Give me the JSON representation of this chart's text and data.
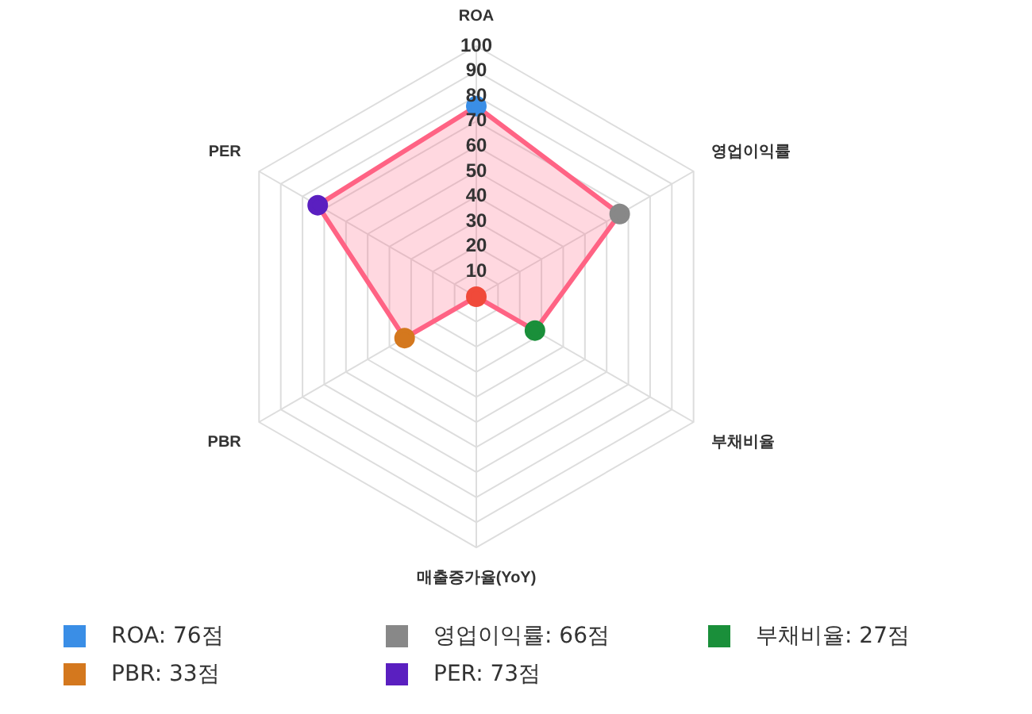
{
  "chart_data": {
    "type": "radar",
    "categories": [
      "ROA",
      "영업이익률",
      "부채비율",
      "매출증가율(YoY)",
      "PBR",
      "PER"
    ],
    "series": [
      {
        "color": "#ff6384",
        "values": [
          76,
          66,
          27,
          0,
          33,
          73
        ],
        "colors": [
          "#3a8ee6",
          "#888888",
          "#1a8f3a",
          "#f04a3a",
          "#d4781e",
          "#5a1fc0"
        ]
      }
    ],
    "annotations": [
      "ROA: 76점",
      "영업이익률: 66점",
      "부채비율: 27점",
      "PBR: 33점",
      "PER: 73점"
    ],
    "ylim": [
      0,
      100
    ],
    "yticks": [
      10,
      20,
      30,
      40,
      50,
      60,
      70,
      80,
      90,
      100
    ],
    "grid": true,
    "marker": "circle"
  }
}
